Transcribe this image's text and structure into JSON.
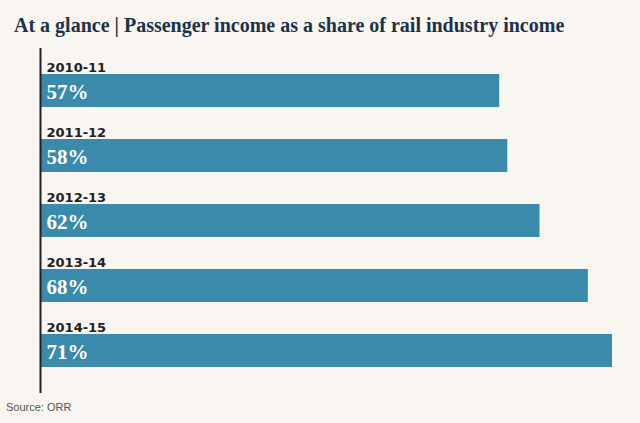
{
  "chart_data": {
    "type": "bar",
    "orientation": "horizontal",
    "title": "At a glance | Passenger income as a share of rail industry income",
    "caption": "Source: ORR",
    "categories": [
      "2010-11",
      "2011-12",
      "2012-13",
      "2013-14",
      "2014-15"
    ],
    "values": [
      57,
      58,
      62,
      68,
      71
    ],
    "value_labels": [
      "57%",
      "58%",
      "62%",
      "68%",
      "71%"
    ],
    "data_labels": true,
    "color": "#3a8aab",
    "xlim": [
      0,
      71
    ],
    "xticks": [],
    "tick_labels": "y",
    "grid": false
  }
}
